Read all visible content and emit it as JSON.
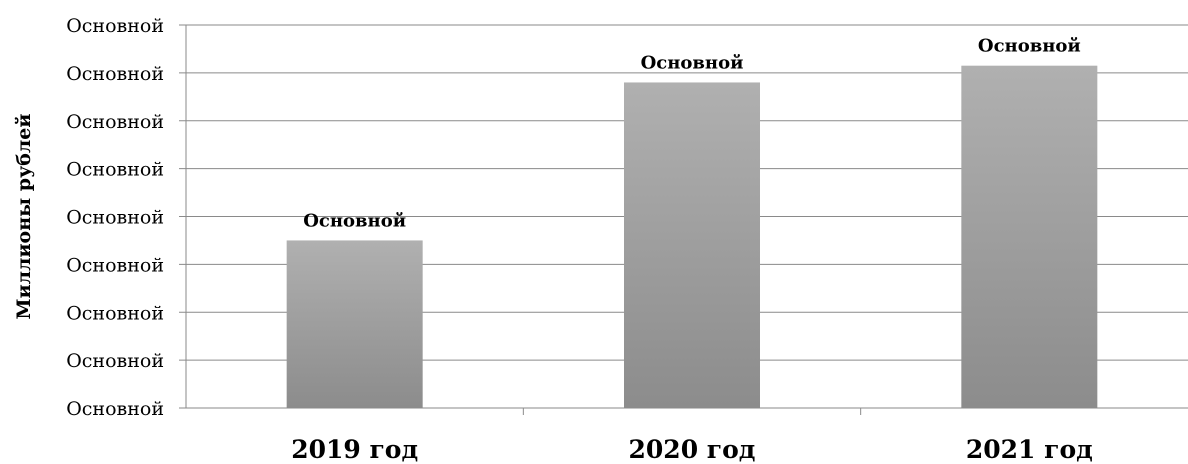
{
  "chart_data": {
    "type": "bar",
    "categories": [
      "2019 год",
      "2020 год",
      "2021 год"
    ],
    "values": [
      3.5,
      6.8,
      7.15
    ],
    "ylim": [
      0,
      8
    ],
    "ytick_values": [
      0,
      1,
      2,
      3,
      4,
      5,
      6,
      7,
      8
    ],
    "ytick_labels": [
      "Основной",
      "Основной",
      "Основной",
      "Основной",
      "Основной",
      "Основной",
      "Основной",
      "Основной",
      "Основной"
    ],
    "data_labels": [
      "Основной",
      "Основной",
      "Основной"
    ],
    "ylabel": "Миллионы рублей",
    "xlabel": "",
    "grid": true,
    "legend": false,
    "colors": {
      "bar_top": "#b0b0b0",
      "bar_bottom": "#8c8c8c",
      "grid": "#8a8a8a"
    }
  }
}
